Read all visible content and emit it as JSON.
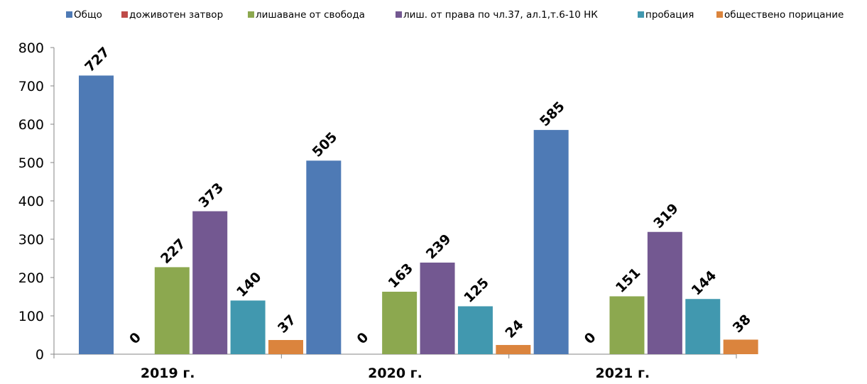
{
  "chart_data": {
    "type": "bar",
    "categories": [
      "2019 г.",
      "2020 г.",
      "2021 г."
    ],
    "series": [
      {
        "name": "Общо",
        "values": [
          727,
          505,
          585
        ],
        "color": "#4E7AB5"
      },
      {
        "name": "доживотен затвор",
        "values": [
          0,
          0,
          0
        ],
        "color": "#BE4B48"
      },
      {
        "name": "лишаване от свобода",
        "values": [
          227,
          163,
          151
        ],
        "color": "#8CA84F"
      },
      {
        "name": "лиш. от права по чл.37, ал.1,т.6-10 НК",
        "values": [
          373,
          239,
          319
        ],
        "color": "#735891"
      },
      {
        "name": "пробация",
        "values": [
          140,
          125,
          144
        ],
        "color": "#4198AF"
      },
      {
        "name": "обществено порицание",
        "values": [
          37,
          24,
          38
        ],
        "color": "#DB843D"
      }
    ],
    "ylim": [
      0,
      800
    ],
    "yticks": [
      0,
      100,
      200,
      300,
      400,
      500,
      600,
      700,
      800
    ],
    "legend_position": "top",
    "grid": false,
    "data_labels": true,
    "title": "",
    "xlabel": "",
    "ylabel": ""
  }
}
